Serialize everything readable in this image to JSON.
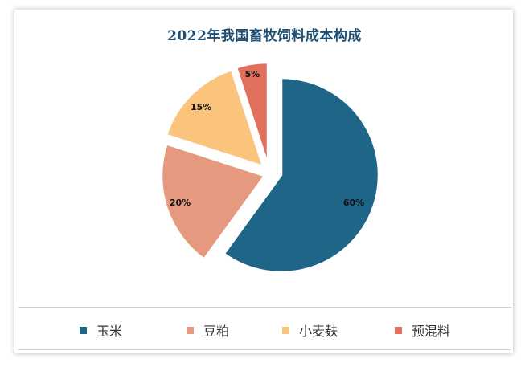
{
  "chart_data": {
    "type": "pie",
    "title": "2022年我国畜牧饲料成本构成",
    "categories": [
      "玉米",
      "豆粕",
      "小麦麸",
      "预混料"
    ],
    "values": [
      60,
      20,
      15,
      5
    ],
    "labels": [
      "60%",
      "20%",
      "15%",
      "5%"
    ],
    "colors": [
      "#1f6588",
      "#e59a80",
      "#fbc47d",
      "#e06f5d"
    ],
    "exploded": true,
    "legend_position": "bottom"
  }
}
